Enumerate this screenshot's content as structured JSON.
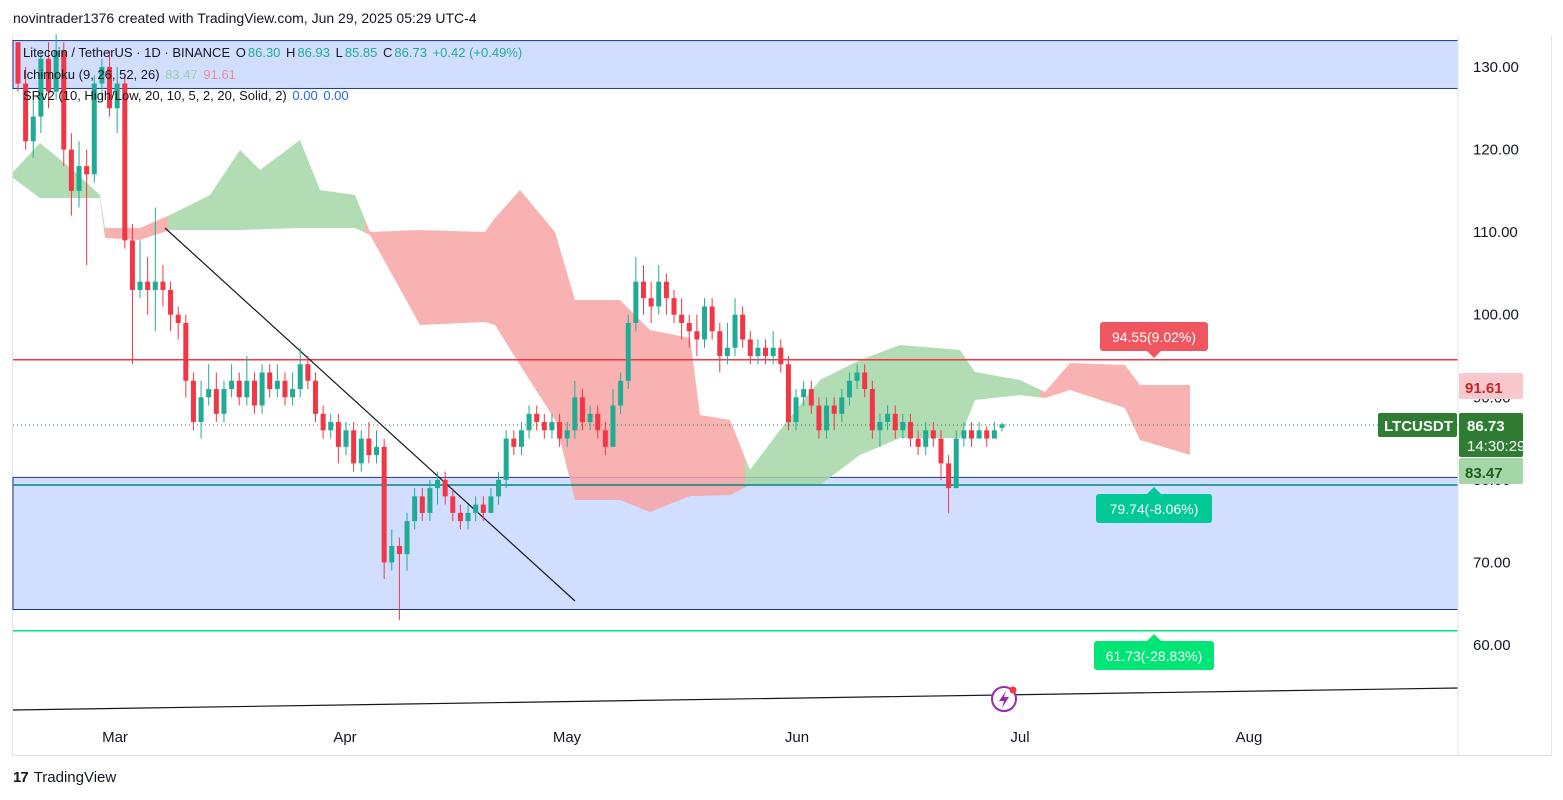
{
  "header": {
    "attribution": "novintrader1376 created with TradingView.com, Jun 29, 2025 05:29 UTC-4"
  },
  "legend": {
    "symbol_line": {
      "name": "Litecoin / TetherUS · 1D · BINANCE",
      "open_label": "O",
      "open": "86.30",
      "high_label": "H",
      "high": "86.93",
      "low_label": "L",
      "low": "85.85",
      "close_label": "C",
      "close": "86.73",
      "change": "+0.42 (+0.49%)"
    },
    "ichimoku": {
      "name": "Ichimoku (9, 26, 52, 26)",
      "v1": "83.47",
      "v2": "91.61"
    },
    "srv2": {
      "name": "SRv2 (10, High/Low, 20, 10, 5, 2, 20, Solid, 2)",
      "v1": "0.00",
      "v2": "0.00"
    }
  },
  "footer": {
    "brand": "TradingView"
  },
  "colors": {
    "up": "#22ab94",
    "down": "#f23645",
    "cloud_bull": "#a5d6a7",
    "cloud_bear": "#f8a5a5",
    "zone": "#c9d8ff",
    "resistance": "#f23645",
    "support_green": "#00e676",
    "trendline": "#131722"
  },
  "chart_data": {
    "type": "candlestick",
    "symbol": "LTCUSDT",
    "ylim": [
      54,
      134
    ],
    "y_ticks": [
      "130.00",
      "120.00",
      "110.00",
      "100.00",
      "90.00",
      "80.00",
      "70.00",
      "60.00"
    ],
    "x_ticks": [
      "Mar",
      "Apr",
      "May",
      "Jun",
      "Jul",
      "Aug"
    ],
    "price_labels": [
      {
        "label": "LTCUSDT",
        "value": "86.73",
        "sub": "14:30:29",
        "color": "#2e7d32"
      },
      {
        "label": "",
        "value": "91.61",
        "sub": "",
        "color": "#f8c8cc"
      },
      {
        "label": "",
        "value": "83.47",
        "sub": "",
        "color": "#a5d6a7"
      }
    ],
    "levels": [
      {
        "name": "resistance",
        "value": 94.55,
        "annotation": "94.55(9.02%)"
      },
      {
        "name": "support",
        "value": 79.74,
        "annotation": "79.74(-8.06%)"
      },
      {
        "name": "major-support",
        "value": 61.73,
        "annotation": "61.73(-28.83%)"
      }
    ],
    "zones": [
      {
        "name": "upper-zone",
        "top": 133.2,
        "bottom": 127.4
      },
      {
        "name": "lower-zone",
        "top": 80.3,
        "bottom": 64.3
      }
    ],
    "candles": [
      [
        133.0,
        128.0,
        133.0,
        127.0
      ],
      [
        128.0,
        121.0,
        130.0,
        120.0
      ],
      [
        121.0,
        124.0,
        126.0,
        119.0
      ],
      [
        124.0,
        131.0,
        132.0,
        122.0
      ],
      [
        131.0,
        127.0,
        133.0,
        125.0
      ],
      [
        127.0,
        132.0,
        134.0,
        126.0
      ],
      [
        132.0,
        120.0,
        133.0,
        118.0
      ],
      [
        120.0,
        115.0,
        122.0,
        112.0
      ],
      [
        115.0,
        118.0,
        121.0,
        113.0
      ],
      [
        118.0,
        117.0,
        120.0,
        106.0
      ],
      [
        117.0,
        128.0,
        129.0,
        116.0
      ],
      [
        128.0,
        130.0,
        131.0,
        126.0
      ],
      [
        130.0,
        125.0,
        132.0,
        124.0
      ],
      [
        125.0,
        128.0,
        130.0,
        122.0
      ],
      [
        128.0,
        109.0,
        129.0,
        108.0
      ],
      [
        109.0,
        103.0,
        111.0,
        94.0
      ],
      [
        103.0,
        104.0,
        109.0,
        102.0
      ],
      [
        104.0,
        103.0,
        107.0,
        100.0
      ],
      [
        103.0,
        104.0,
        113.0,
        98.0
      ],
      [
        104.0,
        103.0,
        106.0,
        101.0
      ],
      [
        103.0,
        100.0,
        104.0,
        98.0
      ],
      [
        100.0,
        99.0,
        101.0,
        97.0
      ],
      [
        99.0,
        92.0,
        100.0,
        90.0
      ],
      [
        92.0,
        87.0,
        93.0,
        86.0
      ],
      [
        87.0,
        90.0,
        92.0,
        85.0
      ],
      [
        90.0,
        91.0,
        94.0,
        89.0
      ],
      [
        91.0,
        88.0,
        93.0,
        87.0
      ],
      [
        88.0,
        91.0,
        92.0,
        87.0
      ],
      [
        91.0,
        92.0,
        94.0,
        90.0
      ],
      [
        92.0,
        90.0,
        93.0,
        89.0
      ],
      [
        90.0,
        92.0,
        95.0,
        89.0
      ],
      [
        92.0,
        89.0,
        93.0,
        88.0
      ],
      [
        89.0,
        93.0,
        94.0,
        88.0
      ],
      [
        93.0,
        91.0,
        94.0,
        90.0
      ],
      [
        91.0,
        92.0,
        94.0,
        90.0
      ],
      [
        92.0,
        90.0,
        93.0,
        89.0
      ],
      [
        90.0,
        91.0,
        93.0,
        89.0
      ],
      [
        91.0,
        94.0,
        96.0,
        90.0
      ],
      [
        94.0,
        92.0,
        95.0,
        91.0
      ],
      [
        92.0,
        88.0,
        93.0,
        87.0
      ],
      [
        88.0,
        86.0,
        89.0,
        85.0
      ],
      [
        86.0,
        87.0,
        88.0,
        85.0
      ],
      [
        87.0,
        84.0,
        88.0,
        82.0
      ],
      [
        84.0,
        86.0,
        87.0,
        83.0
      ],
      [
        86.0,
        82.0,
        87.0,
        81.0
      ],
      [
        82.0,
        85.0,
        86.0,
        81.0
      ],
      [
        85.0,
        83.0,
        87.0,
        82.0
      ],
      [
        83.0,
        84.0,
        86.0,
        82.0
      ],
      [
        84.0,
        70.0,
        85.0,
        68.0
      ],
      [
        70.0,
        72.0,
        74.0,
        69.0
      ],
      [
        72.0,
        71.0,
        73.0,
        63.0
      ],
      [
        71.0,
        75.0,
        76.0,
        69.0
      ],
      [
        75.0,
        78.0,
        79.0,
        74.0
      ],
      [
        78.0,
        76.0,
        79.0,
        75.0
      ],
      [
        76.0,
        79.0,
        80.0,
        75.0
      ],
      [
        79.0,
        80.0,
        81.0,
        77.0
      ],
      [
        80.0,
        78.0,
        81.0,
        77.0
      ],
      [
        78.0,
        76.0,
        79.0,
        75.0
      ],
      [
        76.0,
        75.0,
        77.0,
        74.0
      ],
      [
        75.0,
        76.0,
        77.0,
        74.0
      ],
      [
        76.0,
        77.0,
        78.0,
        75.0
      ],
      [
        77.0,
        76.0,
        78.0,
        75.0
      ],
      [
        76.0,
        78.0,
        79.0,
        76.0
      ],
      [
        78.0,
        80.0,
        81.0,
        77.0
      ],
      [
        80.0,
        85.0,
        86.0,
        79.0
      ],
      [
        85.0,
        84.0,
        86.0,
        83.0
      ],
      [
        84.0,
        86.0,
        87.0,
        83.0
      ],
      [
        86.0,
        88.0,
        89.0,
        85.0
      ],
      [
        88.0,
        87.0,
        89.0,
        86.0
      ],
      [
        87.0,
        86.0,
        88.0,
        85.0
      ],
      [
        86.0,
        87.0,
        88.0,
        85.0
      ],
      [
        87.0,
        85.0,
        88.0,
        84.0
      ],
      [
        85.0,
        86.0,
        87.0,
        84.0
      ],
      [
        86.0,
        90.0,
        92.0,
        85.0
      ],
      [
        90.0,
        87.0,
        91.0,
        86.0
      ],
      [
        87.0,
        88.0,
        89.0,
        86.0
      ],
      [
        88.0,
        86.0,
        89.0,
        85.0
      ],
      [
        86.0,
        84.0,
        87.0,
        83.0
      ],
      [
        84.0,
        89.0,
        91.0,
        84.0
      ],
      [
        89.0,
        92.0,
        93.0,
        88.0
      ],
      [
        92.0,
        99.0,
        100.0,
        91.0
      ],
      [
        99.0,
        104.0,
        107.0,
        98.0
      ],
      [
        104.0,
        102.0,
        106.0,
        100.0
      ],
      [
        102.0,
        101.0,
        104.0,
        99.0
      ],
      [
        101.0,
        104.0,
        106.0,
        100.0
      ],
      [
        104.0,
        102.0,
        105.0,
        100.0
      ],
      [
        102.0,
        100.0,
        103.0,
        99.0
      ],
      [
        100.0,
        99.0,
        102.0,
        97.0
      ],
      [
        99.0,
        98.0,
        100.0,
        96.0
      ],
      [
        98.0,
        97.0,
        100.0,
        95.0
      ],
      [
        97.0,
        101.0,
        102.0,
        96.0
      ],
      [
        101.0,
        98.0,
        102.0,
        97.0
      ],
      [
        98.0,
        95.0,
        99.0,
        93.0
      ],
      [
        95.0,
        96.0,
        99.0,
        94.0
      ],
      [
        96.0,
        100.0,
        102.0,
        95.0
      ],
      [
        100.0,
        97.0,
        101.0,
        96.0
      ],
      [
        97.0,
        95.0,
        98.0,
        94.0
      ],
      [
        95.0,
        96.0,
        97.0,
        94.0
      ],
      [
        96.0,
        95.0,
        97.0,
        94.0
      ],
      [
        95.0,
        96.0,
        98.0,
        94.0
      ],
      [
        96.0,
        94.0,
        97.0,
        93.0
      ],
      [
        94.0,
        87.0,
        95.0,
        86.0
      ],
      [
        87.0,
        90.0,
        91.0,
        86.0
      ],
      [
        90.0,
        91.0,
        92.0,
        89.0
      ],
      [
        91.0,
        89.0,
        92.0,
        88.0
      ],
      [
        89.0,
        86.0,
        90.0,
        85.0
      ],
      [
        86.0,
        89.0,
        90.0,
        85.0
      ],
      [
        89.0,
        88.0,
        90.0,
        86.0
      ],
      [
        88.0,
        90.0,
        91.0,
        87.0
      ],
      [
        90.0,
        92.0,
        93.0,
        89.0
      ],
      [
        92.0,
        93.0,
        94.0,
        91.0
      ],
      [
        93.0,
        91.0,
        94.0,
        90.0
      ],
      [
        91.0,
        86.0,
        92.0,
        85.0
      ],
      [
        86.0,
        87.0,
        88.0,
        84.0
      ],
      [
        87.0,
        88.0,
        89.0,
        86.0
      ],
      [
        88.0,
        86.0,
        89.0,
        85.0
      ],
      [
        86.0,
        87.0,
        88.0,
        85.0
      ],
      [
        87.0,
        85.0,
        88.0,
        84.0
      ],
      [
        85.0,
        84.0,
        86.0,
        83.0
      ],
      [
        84.0,
        86.0,
        87.0,
        83.0
      ],
      [
        86.0,
        85.0,
        87.0,
        84.0
      ],
      [
        85.0,
        82.0,
        86.0,
        80.0
      ],
      [
        82.0,
        79.0,
        83.0,
        76.0
      ],
      [
        79.0,
        85.0,
        86.0,
        79.0
      ],
      [
        85.0,
        86.0,
        87.0,
        84.0
      ],
      [
        86.0,
        85.0,
        87.0,
        84.0
      ],
      [
        85.0,
        86.0,
        87.0,
        85.0
      ],
      [
        86.0,
        85.0,
        86.5,
        84.0
      ],
      [
        85.0,
        86.0,
        87.0,
        85.0
      ],
      [
        86.3,
        86.73,
        86.93,
        85.85
      ]
    ]
  }
}
